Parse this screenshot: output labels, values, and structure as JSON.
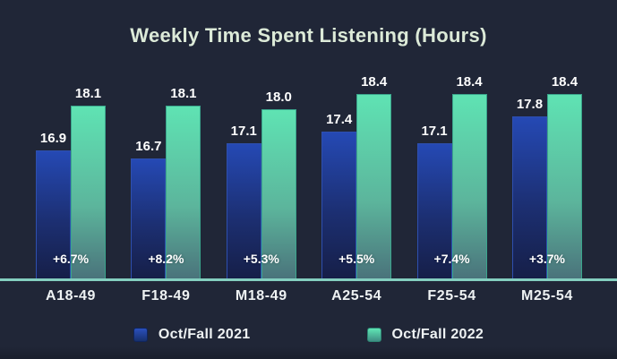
{
  "title": "Weekly Time Spent Listening (Hours)",
  "chart_data": {
    "type": "bar",
    "title": "Weekly Time Spent Listening (Hours)",
    "categories": [
      "A18-49",
      "F18-49",
      "M18-49",
      "A25-54",
      "F25-54",
      "M25-54"
    ],
    "series": [
      {
        "name": "Oct/Fall 2021",
        "values": [
          16.9,
          16.7,
          17.1,
          17.4,
          17.1,
          17.8
        ]
      },
      {
        "name": "Oct/Fall 2022",
        "values": [
          18.1,
          18.1,
          18.0,
          18.4,
          18.4,
          18.4
        ]
      }
    ],
    "change_labels": [
      "+6.7%",
      "+8.2%",
      "+5.3%",
      "+5.5%",
      "+7.4%",
      "+3.7%"
    ],
    "value_labels": true,
    "grid": false,
    "legend_position": "bottom",
    "y_axis_visible": false,
    "y_baseline_truncated": true
  },
  "colors": {
    "background": "#202637",
    "title_text": "#dcead8",
    "series_2021_top": "#2549b4",
    "series_2021_bottom": "#161f48",
    "series_2022_top": "#5fe3b3",
    "series_2022_bottom": "#4a737b",
    "axis_line": "#84cfc0",
    "label_text": "#ffffff"
  }
}
